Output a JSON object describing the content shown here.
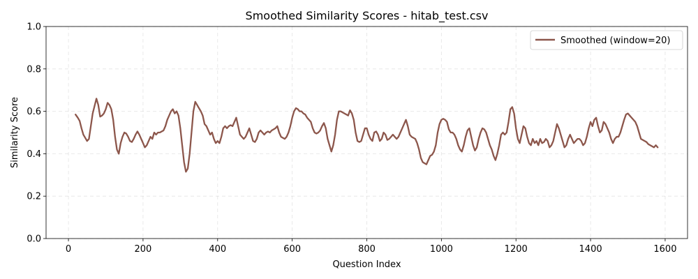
{
  "chart_data": {
    "type": "line",
    "title": "Smoothed Similarity Scores - hitab_test.csv",
    "xlabel": "Question Index",
    "ylabel": "Similarity Score",
    "xlim": [
      -60,
      1660
    ],
    "ylim": [
      0.0,
      1.0
    ],
    "xticks": [
      0,
      200,
      400,
      600,
      800,
      1000,
      1200,
      1400,
      1600
    ],
    "xtick_labels": [
      "0",
      "200",
      "400",
      "600",
      "800",
      "1000",
      "1200",
      "1400",
      "1600"
    ],
    "yticks": [
      0.0,
      0.2,
      0.4,
      0.6,
      0.8,
      1.0
    ],
    "ytick_labels": [
      "0.0",
      "0.2",
      "0.4",
      "0.6",
      "0.8",
      "1.0"
    ],
    "grid": true,
    "legend_position": "top-right",
    "series": [
      {
        "name": "Smoothed (window=20)",
        "color": "#8c564b",
        "points": [
          [
            19,
            0.585
          ],
          [
            25,
            0.57
          ],
          [
            30,
            0.555
          ],
          [
            35,
            0.52
          ],
          [
            40,
            0.49
          ],
          [
            45,
            0.475
          ],
          [
            50,
            0.46
          ],
          [
            55,
            0.47
          ],
          [
            60,
            0.53
          ],
          [
            65,
            0.59
          ],
          [
            70,
            0.625
          ],
          [
            75,
            0.66
          ],
          [
            80,
            0.63
          ],
          [
            85,
            0.575
          ],
          [
            90,
            0.58
          ],
          [
            95,
            0.59
          ],
          [
            100,
            0.61
          ],
          [
            105,
            0.64
          ],
          [
            110,
            0.63
          ],
          [
            115,
            0.61
          ],
          [
            120,
            0.56
          ],
          [
            125,
            0.48
          ],
          [
            130,
            0.42
          ],
          [
            135,
            0.4
          ],
          [
            140,
            0.45
          ],
          [
            145,
            0.48
          ],
          [
            150,
            0.5
          ],
          [
            155,
            0.495
          ],
          [
            160,
            0.48
          ],
          [
            165,
            0.46
          ],
          [
            170,
            0.455
          ],
          [
            175,
            0.47
          ],
          [
            180,
            0.49
          ],
          [
            185,
            0.505
          ],
          [
            190,
            0.49
          ],
          [
            195,
            0.47
          ],
          [
            200,
            0.45
          ],
          [
            205,
            0.43
          ],
          [
            210,
            0.44
          ],
          [
            215,
            0.46
          ],
          [
            220,
            0.48
          ],
          [
            225,
            0.47
          ],
          [
            230,
            0.5
          ],
          [
            235,
            0.49
          ],
          [
            240,
            0.5
          ],
          [
            245,
            0.5
          ],
          [
            250,
            0.505
          ],
          [
            255,
            0.51
          ],
          [
            260,
            0.53
          ],
          [
            265,
            0.56
          ],
          [
            270,
            0.58
          ],
          [
            275,
            0.6
          ],
          [
            280,
            0.61
          ],
          [
            285,
            0.59
          ],
          [
            290,
            0.6
          ],
          [
            295,
            0.58
          ],
          [
            300,
            0.52
          ],
          [
            305,
            0.44
          ],
          [
            310,
            0.36
          ],
          [
            315,
            0.315
          ],
          [
            320,
            0.33
          ],
          [
            325,
            0.4
          ],
          [
            330,
            0.5
          ],
          [
            335,
            0.6
          ],
          [
            340,
            0.645
          ],
          [
            345,
            0.63
          ],
          [
            350,
            0.615
          ],
          [
            355,
            0.6
          ],
          [
            360,
            0.58
          ],
          [
            365,
            0.54
          ],
          [
            370,
            0.53
          ],
          [
            375,
            0.51
          ],
          [
            380,
            0.49
          ],
          [
            385,
            0.5
          ],
          [
            390,
            0.47
          ],
          [
            395,
            0.45
          ],
          [
            400,
            0.46
          ],
          [
            405,
            0.45
          ],
          [
            410,
            0.48
          ],
          [
            415,
            0.52
          ],
          [
            420,
            0.53
          ],
          [
            425,
            0.52
          ],
          [
            430,
            0.53
          ],
          [
            435,
            0.535
          ],
          [
            440,
            0.53
          ],
          [
            445,
            0.55
          ],
          [
            450,
            0.57
          ],
          [
            455,
            0.53
          ],
          [
            460,
            0.49
          ],
          [
            465,
            0.48
          ],
          [
            470,
            0.47
          ],
          [
            475,
            0.48
          ],
          [
            480,
            0.5
          ],
          [
            485,
            0.52
          ],
          [
            490,
            0.49
          ],
          [
            495,
            0.46
          ],
          [
            500,
            0.455
          ],
          [
            505,
            0.47
          ],
          [
            510,
            0.5
          ],
          [
            515,
            0.51
          ],
          [
            520,
            0.5
          ],
          [
            525,
            0.49
          ],
          [
            530,
            0.5
          ],
          [
            535,
            0.505
          ],
          [
            540,
            0.5
          ],
          [
            545,
            0.51
          ],
          [
            550,
            0.515
          ],
          [
            555,
            0.52
          ],
          [
            560,
            0.53
          ],
          [
            565,
            0.5
          ],
          [
            570,
            0.48
          ],
          [
            575,
            0.475
          ],
          [
            580,
            0.47
          ],
          [
            585,
            0.48
          ],
          [
            590,
            0.5
          ],
          [
            595,
            0.53
          ],
          [
            600,
            0.57
          ],
          [
            605,
            0.6
          ],
          [
            610,
            0.615
          ],
          [
            615,
            0.61
          ],
          [
            620,
            0.6
          ],
          [
            625,
            0.6
          ],
          [
            630,
            0.59
          ],
          [
            635,
            0.585
          ],
          [
            640,
            0.57
          ],
          [
            645,
            0.56
          ],
          [
            650,
            0.55
          ],
          [
            655,
            0.52
          ],
          [
            660,
            0.5
          ],
          [
            665,
            0.495
          ],
          [
            670,
            0.5
          ],
          [
            675,
            0.51
          ],
          [
            680,
            0.53
          ],
          [
            685,
            0.545
          ],
          [
            690,
            0.52
          ],
          [
            695,
            0.47
          ],
          [
            700,
            0.44
          ],
          [
            705,
            0.41
          ],
          [
            710,
            0.44
          ],
          [
            715,
            0.49
          ],
          [
            720,
            0.56
          ],
          [
            725,
            0.6
          ],
          [
            730,
            0.6
          ],
          [
            735,
            0.595
          ],
          [
            740,
            0.59
          ],
          [
            745,
            0.585
          ],
          [
            750,
            0.58
          ],
          [
            755,
            0.605
          ],
          [
            760,
            0.59
          ],
          [
            765,
            0.56
          ],
          [
            770,
            0.5
          ],
          [
            775,
            0.46
          ],
          [
            780,
            0.455
          ],
          [
            785,
            0.46
          ],
          [
            790,
            0.49
          ],
          [
            795,
            0.52
          ],
          [
            800,
            0.52
          ],
          [
            805,
            0.49
          ],
          [
            810,
            0.47
          ],
          [
            815,
            0.46
          ],
          [
            820,
            0.5
          ],
          [
            825,
            0.505
          ],
          [
            830,
            0.49
          ],
          [
            835,
            0.46
          ],
          [
            840,
            0.47
          ],
          [
            845,
            0.5
          ],
          [
            850,
            0.49
          ],
          [
            855,
            0.465
          ],
          [
            860,
            0.47
          ],
          [
            865,
            0.48
          ],
          [
            870,
            0.49
          ],
          [
            875,
            0.48
          ],
          [
            880,
            0.47
          ],
          [
            885,
            0.48
          ],
          [
            890,
            0.5
          ],
          [
            895,
            0.52
          ],
          [
            900,
            0.54
          ],
          [
            905,
            0.56
          ],
          [
            910,
            0.53
          ],
          [
            915,
            0.49
          ],
          [
            920,
            0.48
          ],
          [
            925,
            0.475
          ],
          [
            930,
            0.47
          ],
          [
            935,
            0.45
          ],
          [
            940,
            0.42
          ],
          [
            945,
            0.38
          ],
          [
            950,
            0.36
          ],
          [
            955,
            0.355
          ],
          [
            960,
            0.35
          ],
          [
            965,
            0.37
          ],
          [
            970,
            0.39
          ],
          [
            975,
            0.395
          ],
          [
            980,
            0.41
          ],
          [
            985,
            0.44
          ],
          [
            990,
            0.5
          ],
          [
            995,
            0.54
          ],
          [
            1000,
            0.56
          ],
          [
            1005,
            0.565
          ],
          [
            1010,
            0.56
          ],
          [
            1015,
            0.55
          ],
          [
            1020,
            0.515
          ],
          [
            1025,
            0.5
          ],
          [
            1030,
            0.5
          ],
          [
            1035,
            0.49
          ],
          [
            1040,
            0.47
          ],
          [
            1045,
            0.44
          ],
          [
            1050,
            0.42
          ],
          [
            1055,
            0.41
          ],
          [
            1060,
            0.44
          ],
          [
            1065,
            0.48
          ],
          [
            1070,
            0.51
          ],
          [
            1075,
            0.52
          ],
          [
            1080,
            0.48
          ],
          [
            1085,
            0.44
          ],
          [
            1090,
            0.415
          ],
          [
            1095,
            0.43
          ],
          [
            1100,
            0.47
          ],
          [
            1105,
            0.5
          ],
          [
            1110,
            0.52
          ],
          [
            1115,
            0.515
          ],
          [
            1120,
            0.5
          ],
          [
            1125,
            0.47
          ],
          [
            1130,
            0.44
          ],
          [
            1135,
            0.42
          ],
          [
            1140,
            0.39
          ],
          [
            1145,
            0.37
          ],
          [
            1150,
            0.4
          ],
          [
            1155,
            0.44
          ],
          [
            1160,
            0.49
          ],
          [
            1165,
            0.5
          ],
          [
            1170,
            0.49
          ],
          [
            1175,
            0.5
          ],
          [
            1180,
            0.55
          ],
          [
            1185,
            0.61
          ],
          [
            1190,
            0.62
          ],
          [
            1195,
            0.59
          ],
          [
            1200,
            0.52
          ],
          [
            1205,
            0.47
          ],
          [
            1210,
            0.45
          ],
          [
            1215,
            0.49
          ],
          [
            1220,
            0.53
          ],
          [
            1225,
            0.52
          ],
          [
            1230,
            0.48
          ],
          [
            1235,
            0.45
          ],
          [
            1240,
            0.44
          ],
          [
            1245,
            0.47
          ],
          [
            1250,
            0.45
          ],
          [
            1255,
            0.46
          ],
          [
            1260,
            0.44
          ],
          [
            1265,
            0.47
          ],
          [
            1270,
            0.45
          ],
          [
            1275,
            0.455
          ],
          [
            1280,
            0.47
          ],
          [
            1285,
            0.46
          ],
          [
            1290,
            0.43
          ],
          [
            1295,
            0.44
          ],
          [
            1300,
            0.46
          ],
          [
            1305,
            0.5
          ],
          [
            1310,
            0.54
          ],
          [
            1315,
            0.52
          ],
          [
            1320,
            0.49
          ],
          [
            1325,
            0.46
          ],
          [
            1330,
            0.43
          ],
          [
            1335,
            0.44
          ],
          [
            1340,
            0.47
          ],
          [
            1345,
            0.49
          ],
          [
            1350,
            0.47
          ],
          [
            1355,
            0.45
          ],
          [
            1360,
            0.46
          ],
          [
            1365,
            0.47
          ],
          [
            1370,
            0.47
          ],
          [
            1375,
            0.46
          ],
          [
            1380,
            0.44
          ],
          [
            1385,
            0.45
          ],
          [
            1390,
            0.48
          ],
          [
            1395,
            0.52
          ],
          [
            1400,
            0.55
          ],
          [
            1405,
            0.53
          ],
          [
            1410,
            0.56
          ],
          [
            1415,
            0.57
          ],
          [
            1420,
            0.53
          ],
          [
            1425,
            0.5
          ],
          [
            1430,
            0.51
          ],
          [
            1435,
            0.55
          ],
          [
            1440,
            0.54
          ],
          [
            1445,
            0.52
          ],
          [
            1450,
            0.5
          ],
          [
            1455,
            0.47
          ],
          [
            1460,
            0.45
          ],
          [
            1465,
            0.47
          ],
          [
            1470,
            0.48
          ],
          [
            1475,
            0.48
          ],
          [
            1480,
            0.5
          ],
          [
            1485,
            0.53
          ],
          [
            1490,
            0.56
          ],
          [
            1495,
            0.585
          ],
          [
            1500,
            0.59
          ],
          [
            1505,
            0.58
          ],
          [
            1510,
            0.57
          ],
          [
            1515,
            0.56
          ],
          [
            1520,
            0.55
          ],
          [
            1525,
            0.53
          ],
          [
            1530,
            0.5
          ],
          [
            1535,
            0.47
          ],
          [
            1540,
            0.465
          ],
          [
            1545,
            0.46
          ],
          [
            1550,
            0.455
          ],
          [
            1555,
            0.445
          ],
          [
            1560,
            0.44
          ],
          [
            1565,
            0.435
          ],
          [
            1570,
            0.43
          ],
          [
            1575,
            0.44
          ],
          [
            1580,
            0.43
          ]
        ]
      }
    ]
  }
}
